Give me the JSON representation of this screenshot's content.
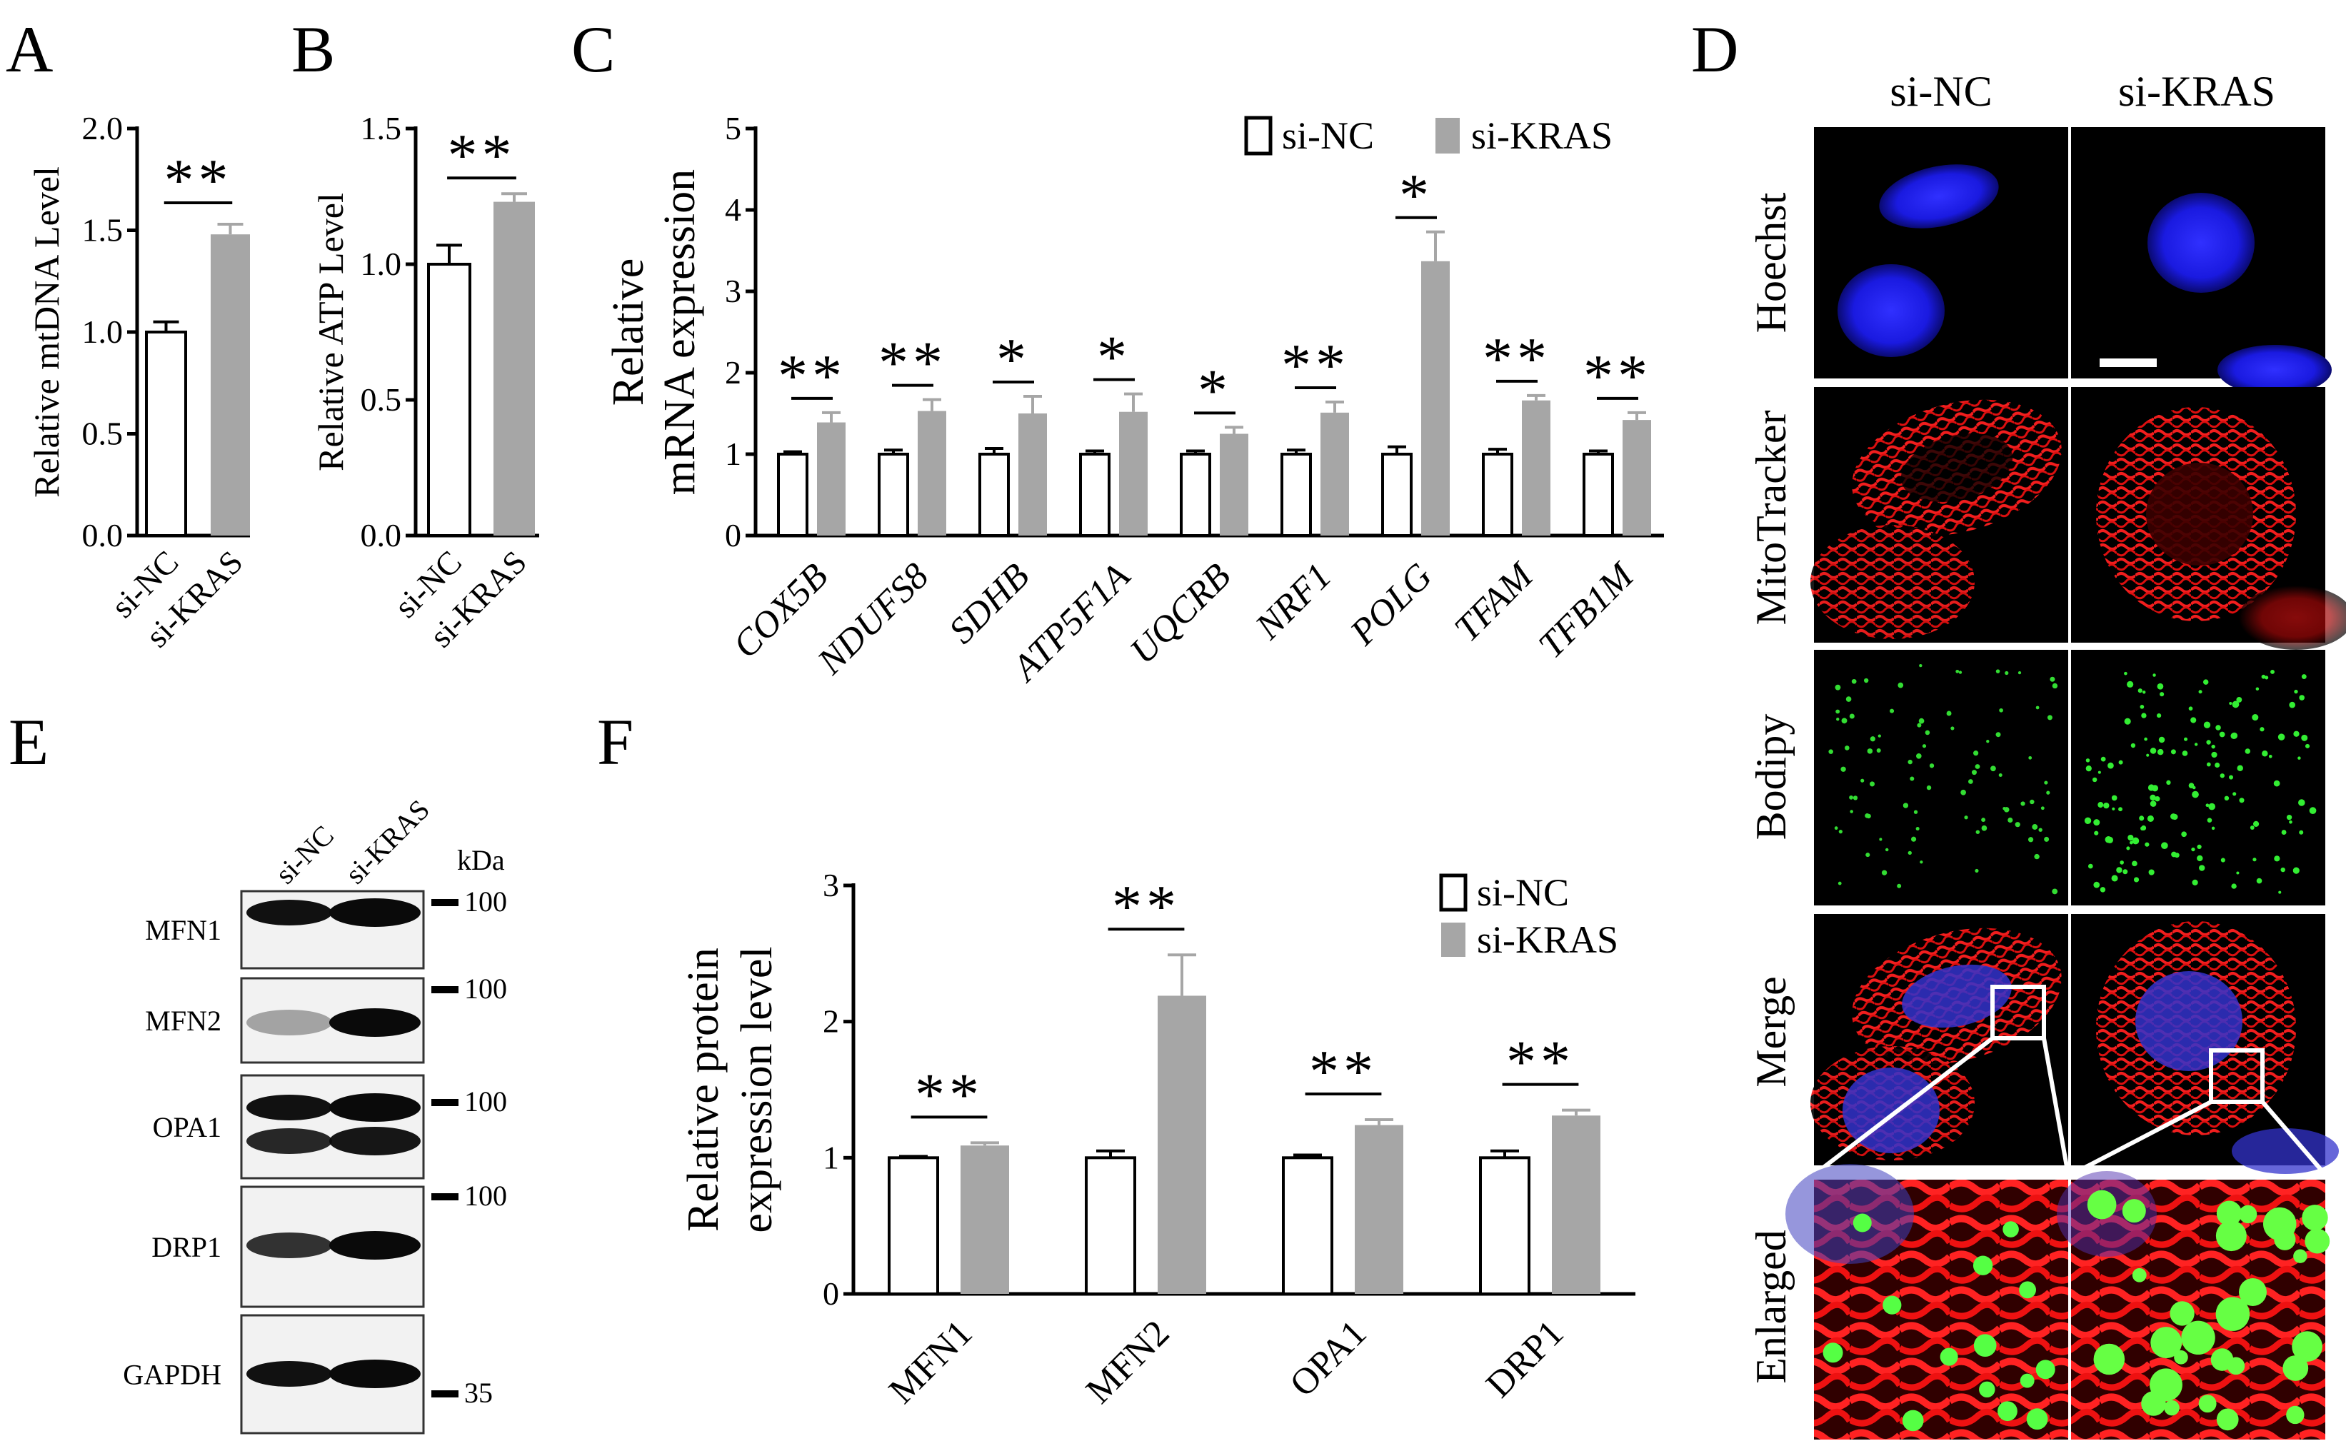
{
  "colors": {
    "control": "#ffffff",
    "treatment": "#a6a6a6",
    "axis": "#000000"
  },
  "panels": {
    "a": "A",
    "b": "B",
    "c": "C",
    "d": "D",
    "e": "E",
    "f": "F"
  },
  "chart_data": [
    {
      "id": "A",
      "type": "bar",
      "categories": [
        "si-NC",
        "si-KRAS"
      ],
      "values": [
        1.0,
        1.48
      ],
      "errors": [
        0.05,
        0.05
      ],
      "ylabel": "Relative mtDNA Level",
      "ylim": [
        0,
        2.0
      ],
      "yticks": [
        "0.0",
        "0.5",
        "1.0",
        "1.5",
        "2.0"
      ],
      "significance": "**"
    },
    {
      "id": "B",
      "type": "bar",
      "categories": [
        "si-NC",
        "si-KRAS"
      ],
      "values": [
        1.0,
        1.23
      ],
      "errors": [
        0.07,
        0.03
      ],
      "ylabel": "Relative ATP Level",
      "ylim": [
        0,
        1.5
      ],
      "yticks": [
        "0.0",
        "0.5",
        "1.0",
        "1.5"
      ],
      "significance": "**"
    },
    {
      "id": "C",
      "type": "bar",
      "categories": [
        "COX5B",
        "NDUFS8",
        "SDHB",
        "ATP5F1A",
        "UQCRB",
        "NRF1",
        "POLG",
        "TFAM",
        "TFB1M"
      ],
      "series": [
        {
          "name": "si-NC",
          "values": [
            1,
            1,
            1,
            1,
            1,
            1,
            1,
            1,
            1
          ],
          "errors": [
            0.03,
            0.05,
            0.07,
            0.04,
            0.04,
            0.05,
            0.09,
            0.06,
            0.04
          ]
        },
        {
          "name": "si-KRAS",
          "values": [
            1.39,
            1.53,
            1.5,
            1.52,
            1.25,
            1.51,
            3.37,
            1.66,
            1.42
          ],
          "errors": [
            0.12,
            0.14,
            0.21,
            0.22,
            0.08,
            0.13,
            0.36,
            0.06,
            0.09
          ]
        }
      ],
      "significance": [
        "**",
        "**",
        "*",
        "*",
        "*",
        "**",
        "*",
        "**",
        "**"
      ],
      "ylabel_line1": "Relative",
      "ylabel_line2": "mRNA expression",
      "ylim": [
        0,
        5
      ],
      "yticks": [
        "0",
        "1",
        "2",
        "3",
        "4",
        "5"
      ]
    },
    {
      "id": "F",
      "type": "bar",
      "categories": [
        "MFN1",
        "MFN2",
        "OPA1",
        "DRP1"
      ],
      "series": [
        {
          "name": "si-NC",
          "values": [
            1.0,
            1.0,
            1.0,
            1.0
          ],
          "errors": [
            0.01,
            0.05,
            0.02,
            0.05
          ]
        },
        {
          "name": "si-KRAS",
          "values": [
            1.09,
            2.19,
            1.24,
            1.31
          ],
          "errors": [
            0.02,
            0.3,
            0.04,
            0.04
          ]
        }
      ],
      "significance": [
        "**",
        "**",
        "**",
        "**"
      ],
      "ylabel_line1": "Relative  protein",
      "ylabel_line2": "expression level",
      "ylim": [
        0,
        3
      ],
      "yticks": [
        "0",
        "1",
        "2",
        "3"
      ]
    }
  ],
  "legend": {
    "control": "si-NC",
    "treatment": "si-KRAS"
  },
  "microscopy": {
    "columns": [
      "si-NC",
      "si-KRAS"
    ],
    "rows": [
      "Hoechst",
      "MitoTracker",
      "Bodipy",
      "Merge",
      "Enlarged"
    ]
  },
  "western_blot": {
    "lanes": [
      "si-NC",
      "si-KRAS"
    ],
    "unit": "kDa",
    "proteins": [
      "MFN1",
      "MFN2",
      "OPA1",
      "DRP1",
      "GAPDH"
    ],
    "markers": [
      "100",
      "100",
      "100",
      "100",
      "35"
    ]
  }
}
